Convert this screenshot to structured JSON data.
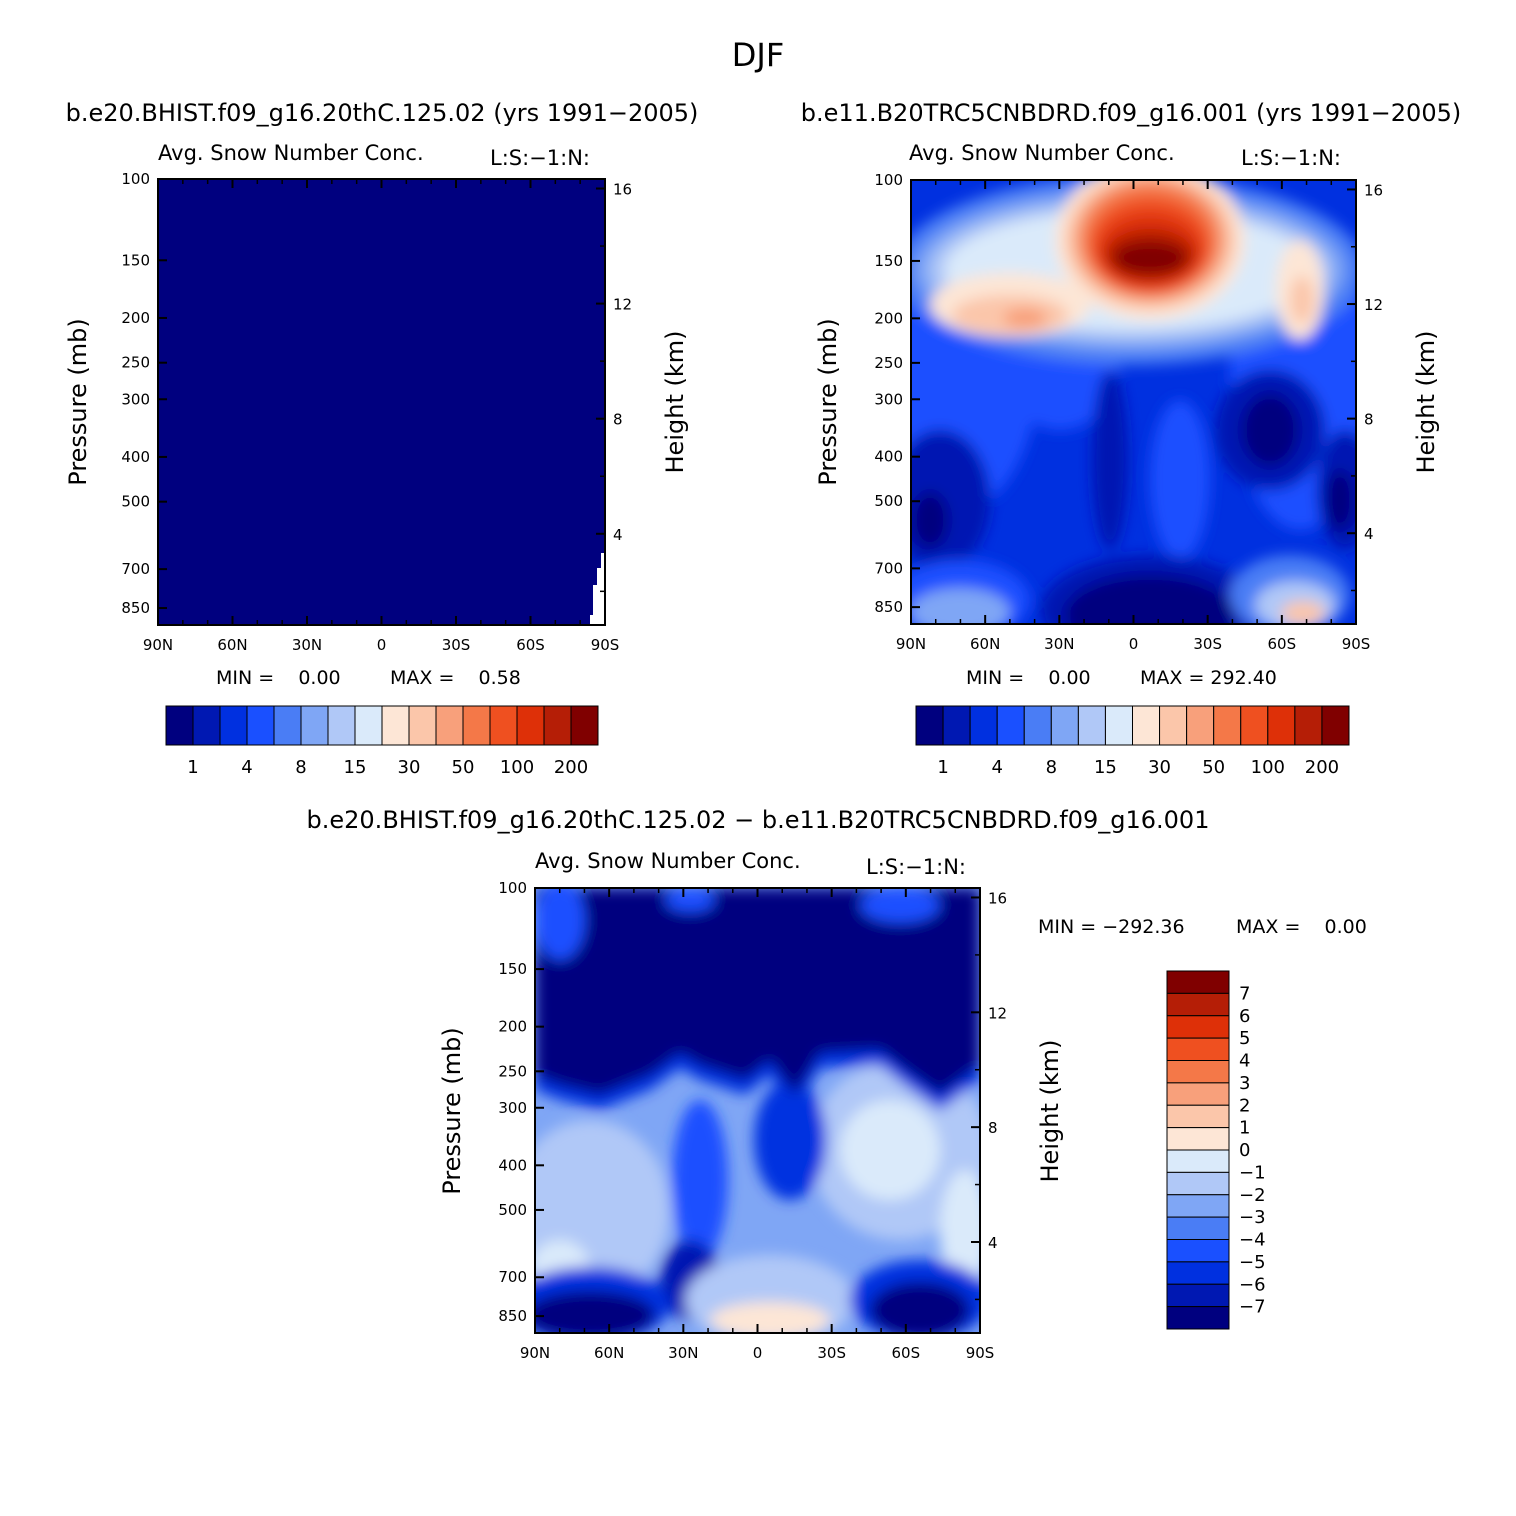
{
  "page_title": "DJF",
  "colors": {
    "palette": [
      "#00007f",
      "#0018b2",
      "#0030e0",
      "#1a50ff",
      "#4a7df5",
      "#7fa6f5",
      "#b0c8f7",
      "#daeafa",
      "#fde6d6",
      "#fbc6aa",
      "#f8a07b",
      "#f47848",
      "#ef5020",
      "#de3008",
      "#b51e06",
      "#800000"
    ]
  },
  "chart_data": [
    {
      "id": "panel-1",
      "type": "heatmap",
      "case_title": "b.e20.BHIST.f09_g16.20thC.125.02 (yrs 1991−2005)",
      "variable_label": "Avg. Snow Number Conc.",
      "units_label": "L:S:−1:N:",
      "xlabel": "",
      "ylabel": "Pressure (mb)",
      "ylabel_right": "Height (km)",
      "x_ticks": [
        "90N",
        "60N",
        "30N",
        "0",
        "30S",
        "60S",
        "90S"
      ],
      "y_ticks": [
        "100",
        "150",
        "200",
        "250",
        "300",
        "400",
        "500",
        "700",
        "850"
      ],
      "y_ticks_right": [
        "16",
        "12",
        "8",
        "4"
      ],
      "min_label": "MIN =    0.00",
      "max_label": "MAX =    0.58",
      "min": 0.0,
      "max": 0.58,
      "field": "uniform-lowest-class",
      "colorbar_labels": [
        "1",
        "4",
        "8",
        "15",
        "30",
        "50",
        "100",
        "200"
      ]
    },
    {
      "id": "panel-2",
      "type": "heatmap",
      "case_title": "b.e11.B20TRC5CNBDRD.f09_g16.001 (yrs 1991−2005)",
      "variable_label": "Avg. Snow Number Conc.",
      "units_label": "L:S:−1:N:",
      "xlabel": "",
      "ylabel": "Pressure (mb)",
      "ylabel_right": "Height (km)",
      "x_ticks": [
        "90N",
        "60N",
        "30N",
        "0",
        "30S",
        "60S",
        "90S"
      ],
      "y_ticks": [
        "100",
        "150",
        "200",
        "250",
        "300",
        "400",
        "500",
        "700",
        "850"
      ],
      "y_ticks_right": [
        "16",
        "12",
        "8",
        "4"
      ],
      "min_label": "MIN =    0.00",
      "max_label": "MAX = 292.40",
      "min": 0.0,
      "max": 292.4,
      "features": [
        {
          "name": "tropical upper-level maximum",
          "lat": -5,
          "p_mb": 150,
          "value": 292
        },
        {
          "name": "NH subtropical band",
          "lat": 45,
          "p_mb": 200,
          "value": 30
        },
        {
          "name": "SH high-latitude band",
          "lat": -70,
          "p_mb": 200,
          "value": 30
        },
        {
          "name": "low-level minimum",
          "lat": 0,
          "p_mb": 850,
          "value": 1
        }
      ],
      "colorbar_labels": [
        "1",
        "4",
        "8",
        "15",
        "30",
        "50",
        "100",
        "200"
      ]
    },
    {
      "id": "panel-diff",
      "type": "heatmap",
      "case_title": "b.e20.BHIST.f09_g16.20thC.125.02 − b.e11.B20TRC5CNBDRD.f09_g16.001",
      "variable_label": "Avg. Snow Number Conc.",
      "units_label": "L:S:−1:N:",
      "xlabel": "",
      "ylabel": "Pressure (mb)",
      "ylabel_right": "Height (km)",
      "x_ticks": [
        "90N",
        "60N",
        "30N",
        "0",
        "30S",
        "60S",
        "90S"
      ],
      "y_ticks": [
        "100",
        "150",
        "200",
        "250",
        "300",
        "400",
        "500",
        "700",
        "850"
      ],
      "y_ticks_right": [
        "16",
        "12",
        "8",
        "4"
      ],
      "min_label": "MIN = −292.36",
      "max_label": "MAX =    0.00",
      "min": -292.36,
      "max": 0.0,
      "features": [
        {
          "name": "upper-level strong negative",
          "lat": 0,
          "p_mb": 150,
          "value": -7
        },
        {
          "name": "mid-level weak negative",
          "lat": -40,
          "p_mb": 400,
          "value": -1
        },
        {
          "name": "near-surface near zero",
          "lat": 0,
          "p_mb": 850,
          "value": 0
        }
      ],
      "colorbar_labels": [
        "7",
        "6",
        "5",
        "4",
        "3",
        "2",
        "1",
        "0",
        "−1",
        "−2",
        "−3",
        "−4",
        "−5",
        "−6",
        "−7"
      ]
    }
  ]
}
